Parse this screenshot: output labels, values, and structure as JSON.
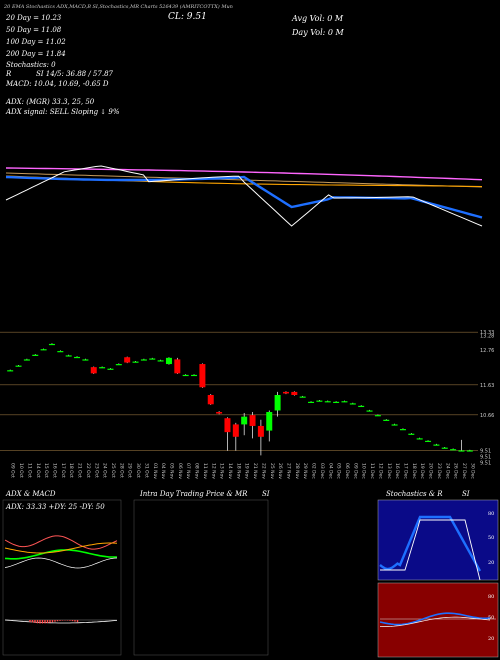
{
  "header": {
    "top_strip": "20 EMA Stochastics ADX,MACD,B   SI,Stochastics,MR   Charts 526439   (AMRITCOTTX) Mun",
    "line1": "20 Day = 10.23",
    "line2": "50 Day = 11.08",
    "line3": "100 Day = 11.02",
    "line4": "200 Day = 11.84",
    "stochastics": "Stochastics: 0",
    "si": "SI 14/5: 36.88 / 57.87",
    "r": "R",
    "macd": "MACD: 10.04, 10.69, -0.65 D",
    "cl": "CL: 9.51",
    "avg_vol": "Avg Vol: 0  M",
    "day_vol": "Day Vol: 0  M",
    "adx_line": "ADX:              (MGR) 33.3, 25, 50",
    "adx_signal": "ADX  signal: SELL Sloping ↓ 9%"
  },
  "chart_data": {
    "type": "candlestick",
    "dates": [
      "09 Oct",
      "10 Oct",
      "11 Oct",
      "14 Oct",
      "15 Oct",
      "16 Oct",
      "17 Oct",
      "18 Oct",
      "21 Oct",
      "22 Oct",
      "23 Oct",
      "24 Oct",
      "25 Oct",
      "28 Oct",
      "29 Oct",
      "30 Oct",
      "31 Oct",
      "01 Nov",
      "04 Nov",
      "05 Nov",
      "06 Nov",
      "07 Nov",
      "08 Nov",
      "11 Nov",
      "12 Nov",
      "13 Nov",
      "14 Nov",
      "18 Nov",
      "19 Nov",
      "21 Nov",
      "22 Nov",
      "25 Nov",
      "26 Nov",
      "27 Nov",
      "28 Nov",
      "29 Nov",
      "02 Dec",
      "03 Dec",
      "04 Dec",
      "05 Dec",
      "06 Dec",
      "09 Dec",
      "10 Dec",
      "11 Dec",
      "12 Dec",
      "13 Dec",
      "16 Dec",
      "17 Dec",
      "18 Dec",
      "19 Dec",
      "20 Dec",
      "23 Dec",
      "24 Dec",
      "26 Dec",
      "27 Dec",
      "30 Dec"
    ],
    "candles": [
      {
        "o": 12.1,
        "h": 12.12,
        "c": 12.1,
        "l": 12.08
      },
      {
        "o": 12.25,
        "h": 12.27,
        "c": 12.25,
        "l": 12.23
      },
      {
        "o": 12.45,
        "h": 12.47,
        "c": 12.45,
        "l": 12.43
      },
      {
        "o": 12.6,
        "h": 12.62,
        "c": 12.6,
        "l": 12.58
      },
      {
        "o": 12.78,
        "h": 12.8,
        "c": 12.78,
        "l": 12.76
      },
      {
        "o": 12.95,
        "h": 12.97,
        "c": 12.95,
        "l": 12.93
      },
      {
        "o": 12.72,
        "h": 12.74,
        "c": 12.72,
        "l": 12.7
      },
      {
        "o": 12.58,
        "h": 12.6,
        "c": 12.58,
        "l": 12.56
      },
      {
        "o": 12.53,
        "h": 12.55,
        "c": 12.53,
        "l": 12.51
      },
      {
        "o": 12.45,
        "h": 12.47,
        "c": 12.45,
        "l": 12.43
      },
      {
        "o": 12.2,
        "h": 12.22,
        "c": 12.0,
        "l": 11.98
      },
      {
        "o": 12.2,
        "h": 12.22,
        "c": 12.2,
        "l": 12.18
      },
      {
        "o": 12.15,
        "h": 12.17,
        "c": 12.15,
        "l": 12.13
      },
      {
        "o": 12.3,
        "h": 12.32,
        "c": 12.3,
        "l": 12.28
      },
      {
        "o": 12.52,
        "h": 12.54,
        "c": 12.35,
        "l": 12.33
      },
      {
        "o": 12.38,
        "h": 12.4,
        "c": 12.38,
        "l": 12.36
      },
      {
        "o": 12.45,
        "h": 12.47,
        "c": 12.45,
        "l": 12.43
      },
      {
        "o": 12.48,
        "h": 12.5,
        "c": 12.48,
        "l": 12.46
      },
      {
        "o": 12.42,
        "h": 12.44,
        "c": 12.42,
        "l": 12.4
      },
      {
        "o": 12.3,
        "h": 12.52,
        "c": 12.5,
        "l": 12.28
      },
      {
        "o": 12.45,
        "h": 12.5,
        "c": 12.0,
        "l": 11.98
      },
      {
        "o": 11.95,
        "h": 11.97,
        "c": 11.95,
        "l": 11.93
      },
      {
        "o": 11.95,
        "h": 11.97,
        "c": 11.95,
        "l": 11.93
      },
      {
        "o": 12.3,
        "h": 12.32,
        "c": 11.55,
        "l": 11.53
      },
      {
        "o": 11.3,
        "h": 11.33,
        "c": 11.0,
        "l": 10.98
      },
      {
        "o": 10.75,
        "h": 10.78,
        "c": 10.7,
        "l": 10.68
      },
      {
        "o": 10.55,
        "h": 10.58,
        "c": 10.1,
        "l": 9.5
      },
      {
        "o": 10.35,
        "h": 10.4,
        "c": 9.95,
        "l": 9.5
      },
      {
        "o": 10.35,
        "h": 10.72,
        "c": 10.6,
        "l": 10.0
      },
      {
        "o": 10.65,
        "h": 10.75,
        "c": 10.3,
        "l": 9.9
      },
      {
        "o": 10.3,
        "h": 10.5,
        "c": 9.95,
        "l": 9.35
      },
      {
        "o": 10.15,
        "h": 10.8,
        "c": 10.75,
        "l": 9.8
      },
      {
        "o": 10.8,
        "h": 11.4,
        "c": 11.3,
        "l": 10.6
      },
      {
        "o": 11.4,
        "h": 11.42,
        "c": 11.35,
        "l": 11.33
      },
      {
        "o": 11.4,
        "h": 11.42,
        "c": 11.3,
        "l": 11.28
      },
      {
        "o": 11.25,
        "h": 11.27,
        "c": 11.25,
        "l": 11.23
      },
      {
        "o": 11.08,
        "h": 11.1,
        "c": 11.08,
        "l": 11.06
      },
      {
        "o": 11.12,
        "h": 11.14,
        "c": 11.12,
        "l": 11.1
      },
      {
        "o": 11.1,
        "h": 11.12,
        "c": 11.1,
        "l": 11.08
      },
      {
        "o": 11.08,
        "h": 11.1,
        "c": 11.08,
        "l": 11.06
      },
      {
        "o": 11.1,
        "h": 11.12,
        "c": 11.1,
        "l": 11.08
      },
      {
        "o": 11.03,
        "h": 11.05,
        "c": 11.03,
        "l": 11.01
      },
      {
        "o": 10.95,
        "h": 10.97,
        "c": 10.95,
        "l": 10.93
      },
      {
        "o": 10.8,
        "h": 10.82,
        "c": 10.8,
        "l": 10.78
      },
      {
        "o": 10.65,
        "h": 10.67,
        "c": 10.65,
        "l": 10.63
      },
      {
        "o": 10.5,
        "h": 10.52,
        "c": 10.5,
        "l": 10.48
      },
      {
        "o": 10.35,
        "h": 10.37,
        "c": 10.35,
        "l": 10.33
      },
      {
        "o": 10.2,
        "h": 10.22,
        "c": 10.2,
        "l": 10.18
      },
      {
        "o": 10.05,
        "h": 10.07,
        "c": 10.05,
        "l": 10.03
      },
      {
        "o": 9.9,
        "h": 9.92,
        "c": 9.9,
        "l": 9.88
      },
      {
        "o": 9.82,
        "h": 9.84,
        "c": 9.82,
        "l": 9.8
      },
      {
        "o": 9.7,
        "h": 9.72,
        "c": 9.7,
        "l": 9.68
      },
      {
        "o": 9.6,
        "h": 9.62,
        "c": 9.6,
        "l": 9.58
      },
      {
        "o": 9.55,
        "h": 9.57,
        "c": 9.55,
        "l": 9.53
      },
      {
        "o": 9.5,
        "h": 9.85,
        "c": 9.51,
        "l": 9.48
      },
      {
        "o": 9.51,
        "h": 9.53,
        "c": 9.51,
        "l": 9.49
      }
    ],
    "ylim": [
      9.2,
      13.4
    ],
    "price_labels": [
      "13.33",
      "13.28",
      "12.76",
      "11.63",
      "10.66",
      "9.51",
      "9.51",
      "9.51"
    ],
    "hlines": [
      13.33,
      11.63,
      10.66,
      9.51
    ]
  },
  "panels": {
    "adx_title": "ADX  & MACD",
    "adx_readout": "ADX: 33.33  +DY: 25  -DY: 50",
    "intraday_title": "Intra  Day Trading Price  & MR",
    "intraday_si": "SI",
    "stoch_title": "Stochastics & R",
    "stoch_si": "SI",
    "stoch_ticks": [
      "80",
      "50",
      "20"
    ],
    "si_ticks": [
      "80",
      "50",
      "20"
    ]
  },
  "colors": {
    "bull": "#00ff00",
    "bear": "#ff0000",
    "ema_white": "#ffffff",
    "ema_blue": "#1e6fff",
    "ema_orange": "#ffa500",
    "ema_pink": "#ff66ff",
    "stoch_bg": "#0a0a88",
    "si_bg": "#880000"
  }
}
